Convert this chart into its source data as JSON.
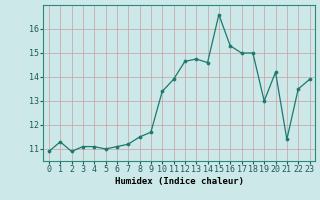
{
  "x": [
    0,
    1,
    2,
    3,
    4,
    5,
    6,
    7,
    8,
    9,
    10,
    11,
    12,
    13,
    14,
    15,
    16,
    17,
    18,
    19,
    20,
    21,
    22,
    23
  ],
  "y": [
    10.9,
    11.3,
    10.9,
    11.1,
    11.1,
    11.0,
    11.1,
    11.2,
    11.5,
    11.7,
    13.4,
    13.9,
    14.65,
    14.75,
    14.6,
    16.6,
    15.3,
    15.0,
    15.0,
    13.0,
    14.2,
    11.4,
    13.5,
    13.9
  ],
  "xlabel": "Humidex (Indice chaleur)",
  "ylim": [
    10.5,
    17.0
  ],
  "xlim": [
    -0.5,
    23.5
  ],
  "yticks": [
    11,
    12,
    13,
    14,
    15,
    16
  ],
  "xticks": [
    0,
    1,
    2,
    3,
    4,
    5,
    6,
    7,
    8,
    9,
    10,
    11,
    12,
    13,
    14,
    15,
    16,
    17,
    18,
    19,
    20,
    21,
    22,
    23
  ],
  "line_color": "#1a7a6e",
  "marker_color": "#1a7a6e",
  "bg_color": "#cce8e8",
  "grid_color": "#c8a0a0",
  "axis_fontsize": 6.5,
  "tick_fontsize": 6.0
}
